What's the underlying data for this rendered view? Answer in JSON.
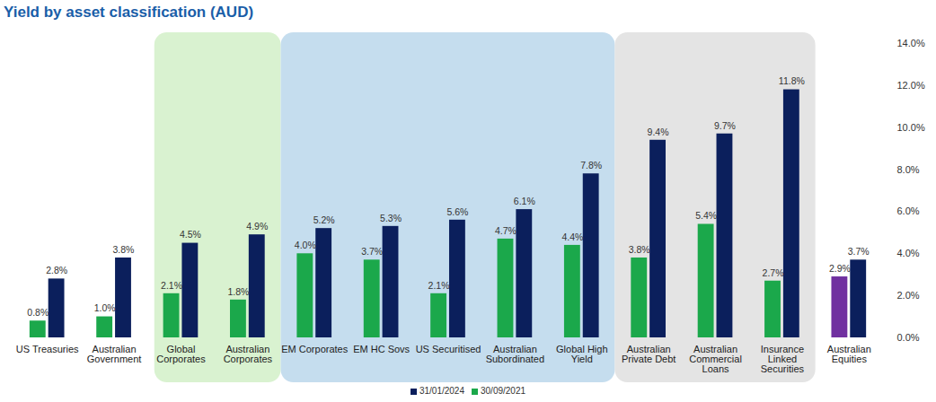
{
  "chart_data": {
    "type": "bar",
    "title": "Yield by asset classification (AUD)",
    "categories": [
      "US Treasuries",
      "Australian Government",
      "Global Corporates",
      "Australian Corporates",
      "EM Corporates",
      "EM HC Sovs",
      "US Securitised",
      "Australian Subordinated",
      "Global High Yield",
      "Australian Private Debt",
      "Australian Commercial Loans",
      "Insurance Linked Securities",
      "Australian Equities"
    ],
    "series": [
      {
        "name": "31/01/2024",
        "color": "#0b1f5c",
        "values": [
          2.8,
          3.8,
          4.5,
          4.9,
          5.2,
          5.3,
          5.6,
          6.1,
          7.8,
          9.4,
          9.7,
          11.8,
          3.7
        ],
        "value_labels": [
          "2.8%",
          "3.8%",
          "4.5%",
          "4.9%",
          "5.2%",
          "5.3%",
          "5.6%",
          "6.1%",
          "7.8%",
          "9.4%",
          "9.7%",
          "11.8%",
          "3.7%"
        ]
      },
      {
        "name": "30/09/2021",
        "color": "#1ba84b",
        "colors": [
          "#1ba84b",
          "#1ba84b",
          "#1ba84b",
          "#1ba84b",
          "#1ba84b",
          "#1ba84b",
          "#1ba84b",
          "#1ba84b",
          "#1ba84b",
          "#1ba84b",
          "#1ba84b",
          "#1ba84b",
          "#7030a0"
        ],
        "values": [
          0.8,
          1.0,
          2.1,
          1.8,
          4.0,
          3.7,
          2.1,
          4.7,
          4.4,
          3.8,
          5.4,
          2.7,
          2.9
        ],
        "value_labels": [
          "0.8%",
          "1.0%",
          "2.1%",
          "1.8%",
          "4.0%",
          "3.7%",
          "2.1%",
          "4.7%",
          "4.4%",
          "3.8%",
          "5.4%",
          "2.7%",
          "2.9%"
        ]
      }
    ],
    "ylim": [
      0,
      14
    ],
    "yticks": [
      {
        "value": 0,
        "label": "0.0%"
      },
      {
        "value": 2,
        "label": "2.0%"
      },
      {
        "value": 4,
        "label": "4.0%"
      },
      {
        "value": 6,
        "label": "6.0%"
      },
      {
        "value": 8,
        "label": "8.0%"
      },
      {
        "value": 10,
        "label": "10.0%"
      },
      {
        "value": 12,
        "label": "12.0%"
      },
      {
        "value": 14,
        "label": "14.0%"
      }
    ],
    "grid": false,
    "data_labels": true,
    "legend": "bottom"
  }
}
